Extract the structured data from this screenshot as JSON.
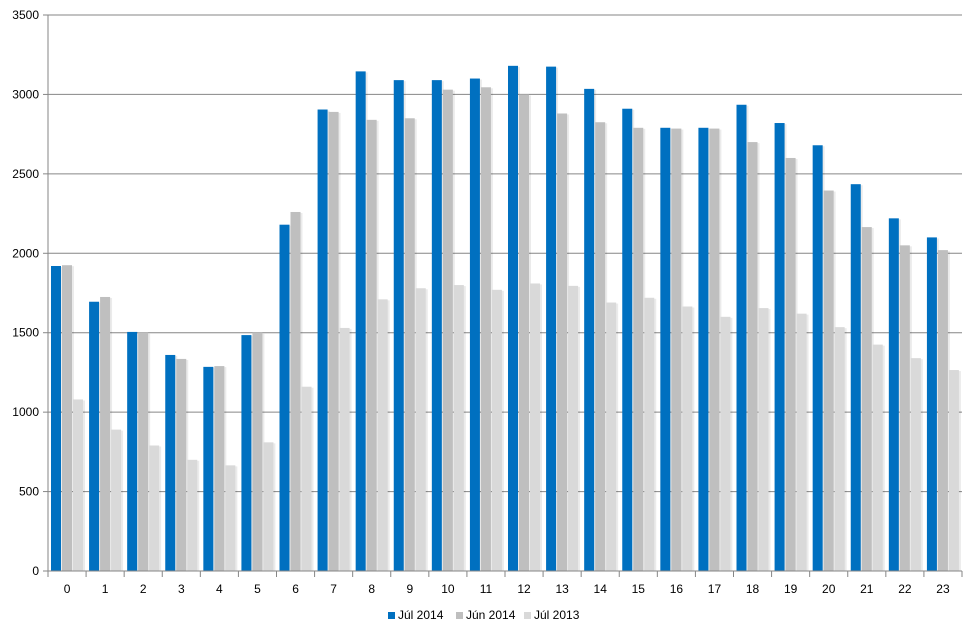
{
  "chart_data": {
    "type": "bar",
    "categories": [
      "0",
      "1",
      "2",
      "3",
      "4",
      "5",
      "6",
      "7",
      "8",
      "9",
      "10",
      "11",
      "12",
      "13",
      "14",
      "15",
      "16",
      "17",
      "18",
      "19",
      "20",
      "21",
      "22",
      "23"
    ],
    "series": [
      {
        "name": "Júl 2014",
        "color": "#0070C0",
        "values": [
          1920,
          1695,
          1505,
          1360,
          1285,
          1485,
          2180,
          2905,
          3145,
          3090,
          3090,
          3100,
          3180,
          3175,
          3035,
          2910,
          2790,
          2790,
          2935,
          2820,
          2680,
          2435,
          2220,
          2100
        ]
      },
      {
        "name": "Jún 2014",
        "color": "#BFBFBF",
        "values": [
          1925,
          1725,
          1500,
          1335,
          1290,
          1500,
          2260,
          2890,
          2840,
          2850,
          3030,
          3045,
          3000,
          2880,
          2825,
          2790,
          2785,
          2785,
          2700,
          2600,
          2395,
          2165,
          2050,
          2020
        ]
      },
      {
        "name": "Júl 2013",
        "color": "#D9D9D9",
        "values": [
          1080,
          890,
          790,
          700,
          665,
          810,
          1160,
          1530,
          1710,
          1780,
          1800,
          1770,
          1810,
          1795,
          1690,
          1720,
          1665,
          1600,
          1655,
          1620,
          1535,
          1425,
          1340,
          1265
        ]
      }
    ],
    "ylim": [
      0,
      3500
    ],
    "yticks": [
      "0",
      "500",
      "1000",
      "1500",
      "2000",
      "2500",
      "3000",
      "3500"
    ],
    "title": "",
    "xlabel": "",
    "ylabel": "",
    "grid": "horizontal",
    "legend_position": "bottom"
  }
}
